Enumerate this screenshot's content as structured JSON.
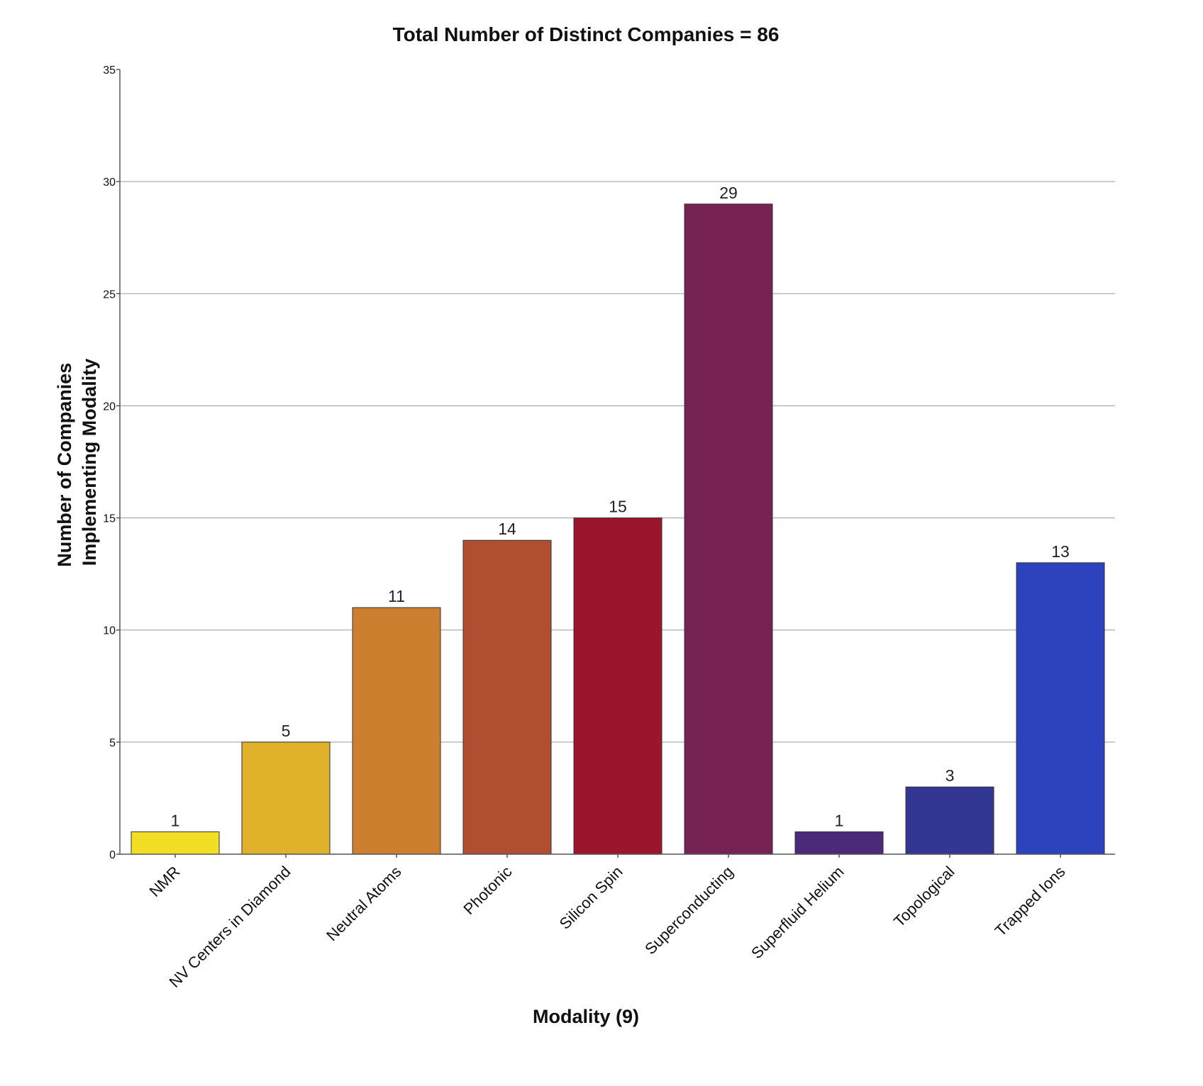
{
  "chart_data": {
    "type": "bar",
    "title": "Total Number of Distinct Companies = 86",
    "xlabel": "Modality (9)",
    "ylabel_lines": [
      "Number of Companies",
      "Implementing Modality"
    ],
    "categories": [
      "NMR",
      "NV Centers in Diamond",
      "Neutral Atoms",
      "Photonic",
      "Silicon Spin",
      "Superconducting",
      "Superfluid Helium",
      "Topological",
      "Trapped Ions"
    ],
    "values": [
      1,
      5,
      11,
      14,
      15,
      29,
      1,
      3,
      13
    ],
    "colors": [
      "#f2df25",
      "#e0b12a",
      "#cc7f2e",
      "#b04e32",
      "#9b162c",
      "#762252",
      "#4b2a7c",
      "#343694",
      "#2d43bd"
    ],
    "ylim": [
      0,
      35
    ],
    "yticks": [
      0,
      5,
      10,
      15,
      20,
      25,
      30,
      35
    ],
    "grid": true,
    "legend": "none"
  }
}
